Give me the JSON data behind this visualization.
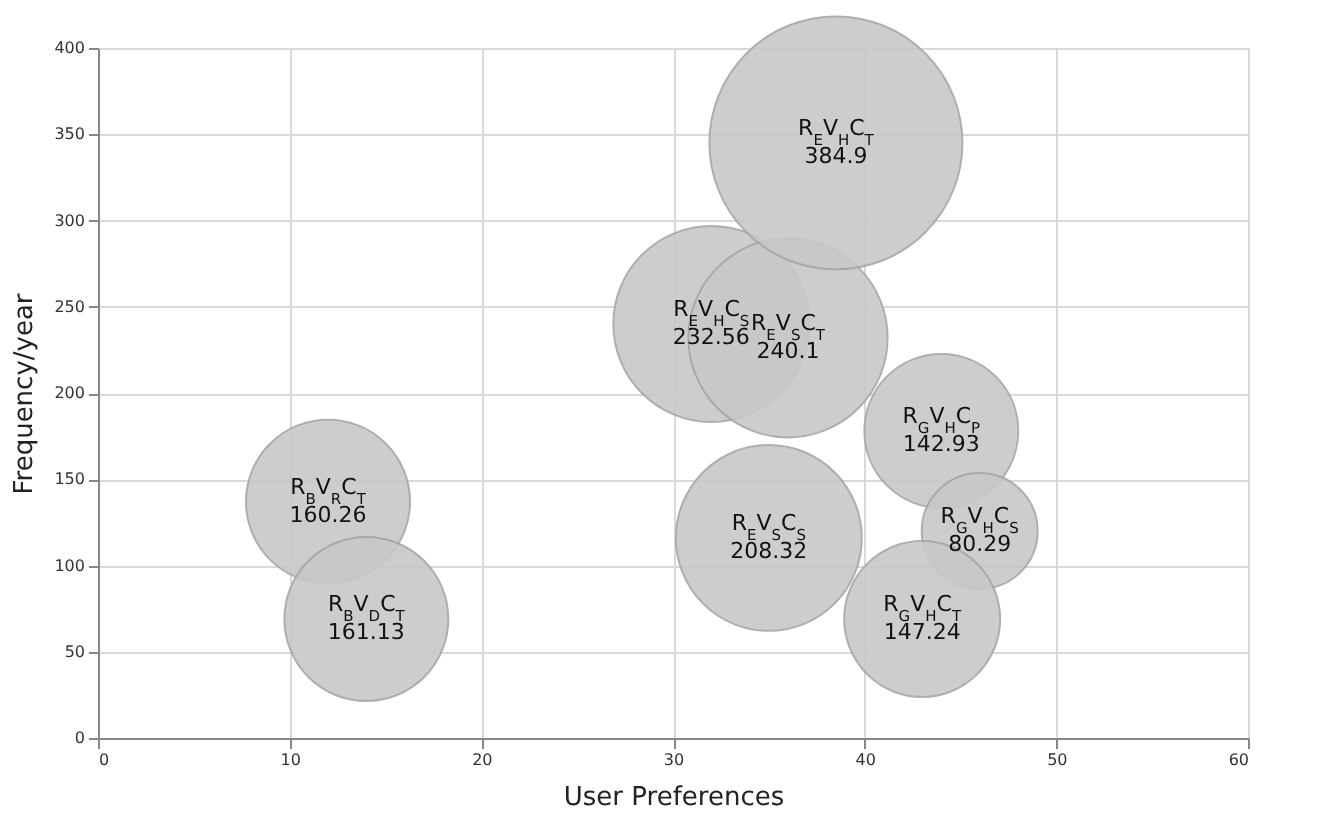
{
  "chart_data": {
    "type": "bubble",
    "xlabel": "User Preferences",
    "ylabel": "Frequency/year",
    "x": [
      12,
      14,
      32,
      36,
      38.5,
      44,
      46,
      35,
      43
    ],
    "series": [
      {
        "color": "#c8c8c8",
        "values": [
          137,
          69,
          240,
          232,
          345,
          178,
          120,
          116,
          69
        ],
        "sizes": [
          0.42,
          0.42,
          0.6,
          0.62,
          1,
          0.37,
          0.21,
          0.54,
          0.38
        ]
      }
    ],
    "annotations": [
      {
        "text": "R$_{B}$V$_{R}$C$_{T}$\n160.26",
        "x": 12,
        "y": 137
      },
      {
        "text": "R$_{B}$V$_{D}$C$_{T}$\n161.13",
        "x": 14,
        "y": 69
      },
      {
        "text": "R$_{E}$V$_{H}$C$_{S}$\n232.56",
        "x": 32,
        "y": 240
      },
      {
        "text": "R$_{E}$V$_{S}$C$_{T}$\n240.1",
        "x": 36,
        "y": 232
      },
      {
        "text": "R$_{E}$V$_{H}$C$_{T}$\n384.9",
        "x": 38.5,
        "y": 345
      },
      {
        "text": "R$_{G}$V$_{H}$C$_{P}$\n142.93",
        "x": 44,
        "y": 178
      },
      {
        "text": "R$_{G}$V$_{H}$C$_{S}$\n80.29",
        "x": 46,
        "y": 120
      },
      {
        "text": "R$_{E}$V$_{S}$C$_{S}$\n208.32",
        "x": 35,
        "y": 116
      },
      {
        "text": "R$_{G}$V$_{H}$C$_{T}$\n147.24",
        "x": 43,
        "y": 69
      }
    ],
    "xlim": [
      0,
      60
    ],
    "xticks": [
      0,
      10,
      20,
      30,
      40,
      50,
      60
    ],
    "ylim": [
      0,
      400
    ],
    "yticks": [
      0,
      50,
      100,
      150,
      200,
      250,
      300,
      350,
      400
    ],
    "grid": true,
    "legend": false
  }
}
